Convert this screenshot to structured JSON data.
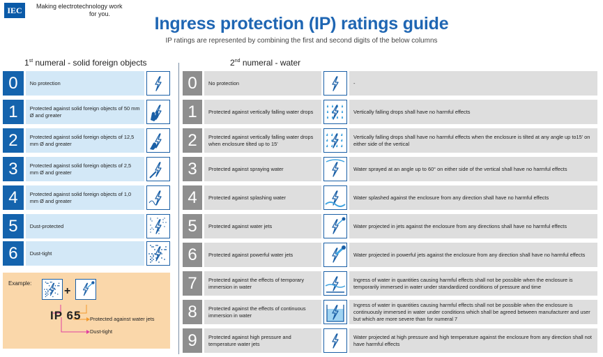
{
  "header": {
    "logo": "IEC",
    "tagline_line1": "Making  electrotechnology work",
    "tagline_line2": "for you.",
    "title": "Ingress protection (IP) ratings guide",
    "subtitle": "IP ratings are represented by combining the first and second digits of the below columns"
  },
  "first_numeral": {
    "heading_num": "1",
    "heading_sup": "st",
    "heading_text": " numeral - solid foreign objects",
    "rows": [
      {
        "digit": "0",
        "text": "No protection",
        "icon": "plug-bolt-icon"
      },
      {
        "digit": "1",
        "text": "Protected against solid foreign objects of 50 mm Ø and greater",
        "icon": "hand-bolt-icon"
      },
      {
        "digit": "2",
        "text": "Protected against solid foreign objects of 12,5 mm Ø and greater",
        "icon": "finger-bolt-icon"
      },
      {
        "digit": "3",
        "text": "Protected against solid foreign objects of 2,5 mm Ø and greater",
        "icon": "tool-bolt-icon"
      },
      {
        "digit": "4",
        "text": "Protected against solid foreign objects of 1,0 mm Ø and greater",
        "icon": "wire-bolt-icon"
      },
      {
        "digit": "5",
        "text": "Dust-protected",
        "icon": "dust-light-icon"
      },
      {
        "digit": "6",
        "text": "Dust-tight",
        "icon": "dust-heavy-icon"
      }
    ]
  },
  "second_numeral": {
    "heading_num": "2",
    "heading_sup": "nd",
    "heading_text": " numeral - water",
    "rows": [
      {
        "digit": "0",
        "text": "No protection",
        "detail": "-",
        "icon": "plug-bolt-icon"
      },
      {
        "digit": "1",
        "text": "Protected against vertically falling water drops",
        "detail": "Vertically falling drops shall have no harmful effects",
        "icon": "vertical-drops-icon"
      },
      {
        "digit": "2",
        "text": "Protected against vertically falling water drops when enclosure tilted up to 15'",
        "detail": "Vertically falling drops shall have no harmful effects when the enclosure is tilted at any angle up to15' on either side of the vertical",
        "icon": "tilted-drops-icon"
      },
      {
        "digit": "3",
        "text": "Protected against spraying water",
        "detail": "Water sprayed at an angle up to 60° on either side of the vertical shall have no harmful effects",
        "icon": "spray-icon"
      },
      {
        "digit": "4",
        "text": "Protected against splashing water",
        "detail": "Water splashed against the enclosure from any direction shall have no harmful effects",
        "icon": "splash-icon"
      },
      {
        "digit": "5",
        "text": "Protected against water jets",
        "detail": "Water projected in jets against the enclosure from any directions shall have no harmful effects",
        "icon": "water-jet-icon"
      },
      {
        "digit": "6",
        "text": "Protected against powerful water jets",
        "detail": "Water projected in powerful jets against the enclosure from any direction shall have no harmful effects",
        "icon": "powerful-jet-icon"
      },
      {
        "digit": "7",
        "text": "Protected against the effects of temporary immersion in water",
        "detail": "Ingress of water in quantities causing harmful effects shall not be possible when the enclosure is temporarily immersed in water under standardized conditions of pressure and time",
        "icon": "temporary-immersion-icon"
      },
      {
        "digit": "8",
        "text": "Protected against the effects of continuous immersion in water",
        "detail": "Ingress of water in quantities causing harmful effects shall not be possible when the enclosure is continuously immersed in water under conditions which shall be agreed between manufacturer and user but which are more severe than for numeral 7",
        "icon": "continuous-immersion-icon"
      },
      {
        "digit": "9",
        "text": "Protected against high pressure and temperature water jets",
        "detail": "Water projected at high pressure and high temperature against the enclosure from any direction shall not have harmful effects",
        "icon": "high-pressure-icon"
      }
    ]
  },
  "example": {
    "label": "Example:",
    "plus": "+",
    "code_prefix": "IP",
    "code_first": "6",
    "code_second": "5",
    "second_meaning": "Protected against water jets",
    "first_meaning": "Dust-tight"
  },
  "colors": {
    "primary_blue": "#1463ad",
    "light_blue": "#d3e8f7",
    "grey_number": "#8e8e8e",
    "grey_cell": "#dedede",
    "example_bg": "#fad7aa",
    "arrow_orange": "#f29a2e",
    "arrow_pink": "#e040a0"
  }
}
